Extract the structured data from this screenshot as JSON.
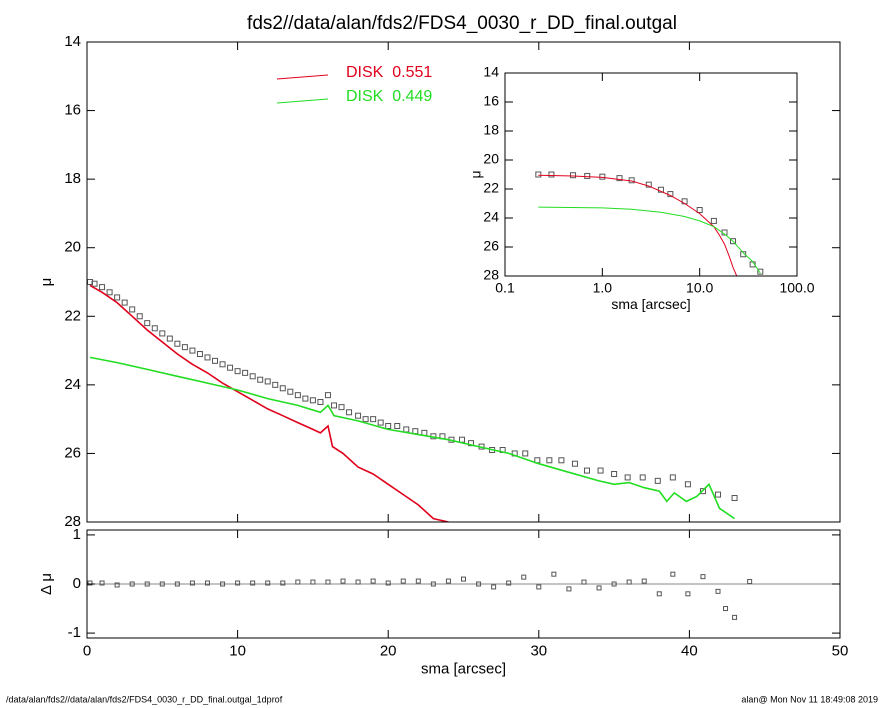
{
  "chart_data": [
    {
      "type": "line",
      "title": "fds2//data/alan/fds2/FDS4_0030_r_DD_final.outgal",
      "ylabel": "μ",
      "xlim": [
        0,
        50
      ],
      "xticks": [
        0,
        10,
        20,
        30,
        40,
        50
      ],
      "ylim": [
        28,
        14
      ],
      "yticks": [
        14,
        16,
        18,
        20,
        22,
        24,
        26,
        28
      ],
      "series": [
        {
          "style": "markers",
          "color": "#555555",
          "x": [
            0.2,
            0.5,
            1,
            1.5,
            2,
            2.5,
            3,
            3.5,
            4,
            4.5,
            5,
            5.5,
            6,
            6.5,
            7,
            7.5,
            8,
            8.5,
            9,
            9.5,
            10,
            10.5,
            11,
            11.5,
            12,
            12.5,
            13,
            13.5,
            14,
            14.5,
            15,
            15.5,
            16,
            16.4,
            16.9,
            17.4,
            18,
            18.5,
            19,
            19.5,
            20,
            20.6,
            21.2,
            21.8,
            22.4,
            23,
            23.6,
            24.2,
            24.9,
            25.5,
            26.2,
            26.9,
            27.6,
            28.4,
            29.1,
            29.9,
            30.7,
            31.5,
            32.4,
            33.2,
            34.1,
            35,
            35.9,
            36.9,
            37.9,
            38.9,
            39.9,
            40.9,
            41.9,
            43
          ],
          "values": [
            21.0,
            21.05,
            21.15,
            21.3,
            21.45,
            21.6,
            21.8,
            22.0,
            22.2,
            22.35,
            22.5,
            22.65,
            22.8,
            22.9,
            23.0,
            23.1,
            23.2,
            23.3,
            23.4,
            23.5,
            23.6,
            23.65,
            23.75,
            23.85,
            23.9,
            24.0,
            24.1,
            24.2,
            24.3,
            24.4,
            24.45,
            24.5,
            24.3,
            24.6,
            24.65,
            24.8,
            24.9,
            25.0,
            25.0,
            25.1,
            25.2,
            25.2,
            25.3,
            25.35,
            25.4,
            25.5,
            25.5,
            25.6,
            25.6,
            25.7,
            25.8,
            25.9,
            25.9,
            26.0,
            26.0,
            26.2,
            26.2,
            26.2,
            26.3,
            26.5,
            26.5,
            26.6,
            26.7,
            26.7,
            26.8,
            26.7,
            26.9,
            27.1,
            27.2,
            27.3
          ]
        },
        {
          "name": "DISK  0.551",
          "style": "lines",
          "color": "#e0001b",
          "x": [
            0.2,
            1,
            2,
            3,
            4,
            5,
            6,
            7,
            8,
            9,
            10,
            11,
            12,
            13,
            14,
            15,
            15.5,
            16,
            16.3,
            17,
            18,
            19,
            20,
            21,
            22,
            23,
            24
          ],
          "values": [
            21.1,
            21.3,
            21.6,
            22.0,
            22.4,
            22.75,
            23.1,
            23.4,
            23.65,
            23.95,
            24.2,
            24.45,
            24.7,
            24.9,
            25.1,
            25.3,
            25.4,
            25.2,
            25.8,
            26.0,
            26.4,
            26.6,
            26.9,
            27.2,
            27.5,
            27.9,
            28.0
          ]
        },
        {
          "name": "DISK  0.449",
          "style": "lines",
          "color": "#22dd22",
          "x": [
            0.2,
            2,
            4,
            6,
            8,
            10,
            12,
            14,
            15.5,
            16,
            16.4,
            18,
            20,
            22,
            24,
            26,
            28,
            30,
            32,
            34,
            35,
            36,
            37,
            38,
            38.5,
            39,
            39.8,
            40.5,
            41.3,
            42,
            43
          ],
          "values": [
            23.2,
            23.35,
            23.55,
            23.75,
            23.95,
            24.15,
            24.4,
            24.6,
            24.8,
            24.6,
            24.9,
            25.05,
            25.3,
            25.45,
            25.6,
            25.8,
            26.0,
            26.3,
            26.55,
            26.8,
            26.9,
            26.85,
            27.0,
            27.1,
            27.4,
            27.15,
            27.4,
            27.25,
            26.9,
            27.6,
            27.9
          ]
        }
      ]
    },
    {
      "type": "scatter",
      "xlabel": "sma [arcsec]",
      "ylabel": "Δ μ",
      "xlim": [
        0,
        50
      ],
      "xticks": [
        0,
        10,
        20,
        30,
        40,
        50
      ],
      "ylim": [
        -1.1,
        1.1
      ],
      "yticks": [
        -1,
        0,
        1
      ],
      "series": [
        {
          "style": "markers",
          "color": "#555555",
          "x": [
            0.2,
            1,
            2,
            3,
            4,
            5,
            6,
            7,
            8,
            9,
            10,
            11,
            12,
            13,
            14,
            15,
            16,
            17,
            18,
            19,
            20,
            21,
            22,
            23,
            24,
            25,
            26,
            27,
            28,
            29,
            30,
            31,
            32,
            33,
            34,
            35,
            36,
            37,
            38,
            38.9,
            39.9,
            40.9,
            41.9,
            42.4,
            43,
            44
          ],
          "values": [
            0.02,
            0.02,
            -0.02,
            0,
            0,
            0,
            0,
            0.02,
            0.02,
            0,
            0.02,
            0.02,
            0.02,
            0.02,
            0.04,
            0.04,
            0.04,
            0.06,
            0.04,
            0.06,
            0.02,
            0.06,
            0.06,
            0.0,
            0.06,
            0.1,
            0.0,
            -0.06,
            0.02,
            0.14,
            -0.06,
            0.2,
            -0.1,
            0.04,
            -0.08,
            0.0,
            0.04,
            0.06,
            -0.2,
            0.2,
            -0.2,
            0.15,
            -0.15,
            -0.5,
            -0.68,
            0.05
          ]
        }
      ]
    },
    {
      "type": "line",
      "xlabel": "sma [arcsec]",
      "ylabel": "μ",
      "xlog": true,
      "xlim": [
        0.1,
        100
      ],
      "xticks": [
        0.1,
        {
          "value": 1,
          "label": "1.0"
        },
        {
          "value": 10,
          "label": "10.0"
        },
        {
          "value": 100,
          "label": "100.0"
        }
      ],
      "ylim": [
        28,
        14
      ],
      "yticks": [
        14,
        16,
        18,
        20,
        22,
        24,
        26,
        28
      ],
      "series": [
        {
          "style": "markers",
          "color": "#555555",
          "x": [
            0.22,
            0.3,
            0.5,
            0.7,
            1,
            1.5,
            2,
            3,
            4,
            5,
            7,
            10,
            14,
            18,
            22,
            28,
            35,
            42
          ],
          "values": [
            21.0,
            21.0,
            21.05,
            21.1,
            21.15,
            21.25,
            21.4,
            21.7,
            22.05,
            22.35,
            22.85,
            23.45,
            24.2,
            25.0,
            25.6,
            26.5,
            27.2,
            27.7
          ]
        },
        {
          "style": "lines",
          "color": "#e0001b",
          "x": [
            0.22,
            0.5,
            1,
            2,
            3,
            5,
            7,
            10,
            14,
            16,
            18,
            20,
            22,
            24
          ],
          "values": [
            21.05,
            21.1,
            21.2,
            21.45,
            21.8,
            22.45,
            23.0,
            23.7,
            24.6,
            25.2,
            25.8,
            26.6,
            27.4,
            28.0
          ]
        },
        {
          "style": "lines",
          "color": "#22dd22",
          "x": [
            0.22,
            1,
            2,
            4,
            7,
            10,
            14,
            18,
            22,
            28,
            35,
            42
          ],
          "values": [
            23.25,
            23.3,
            23.4,
            23.6,
            23.9,
            24.2,
            24.6,
            25.1,
            25.6,
            26.4,
            27.0,
            27.8
          ]
        }
      ]
    }
  ],
  "footer": {
    "left": "/data/alan/fds2//data/alan/fds2/FDS4_0030_r_DD_final.outgal_1dprof",
    "right": "alan@  Mon Nov 11 18:49:08 2019"
  }
}
